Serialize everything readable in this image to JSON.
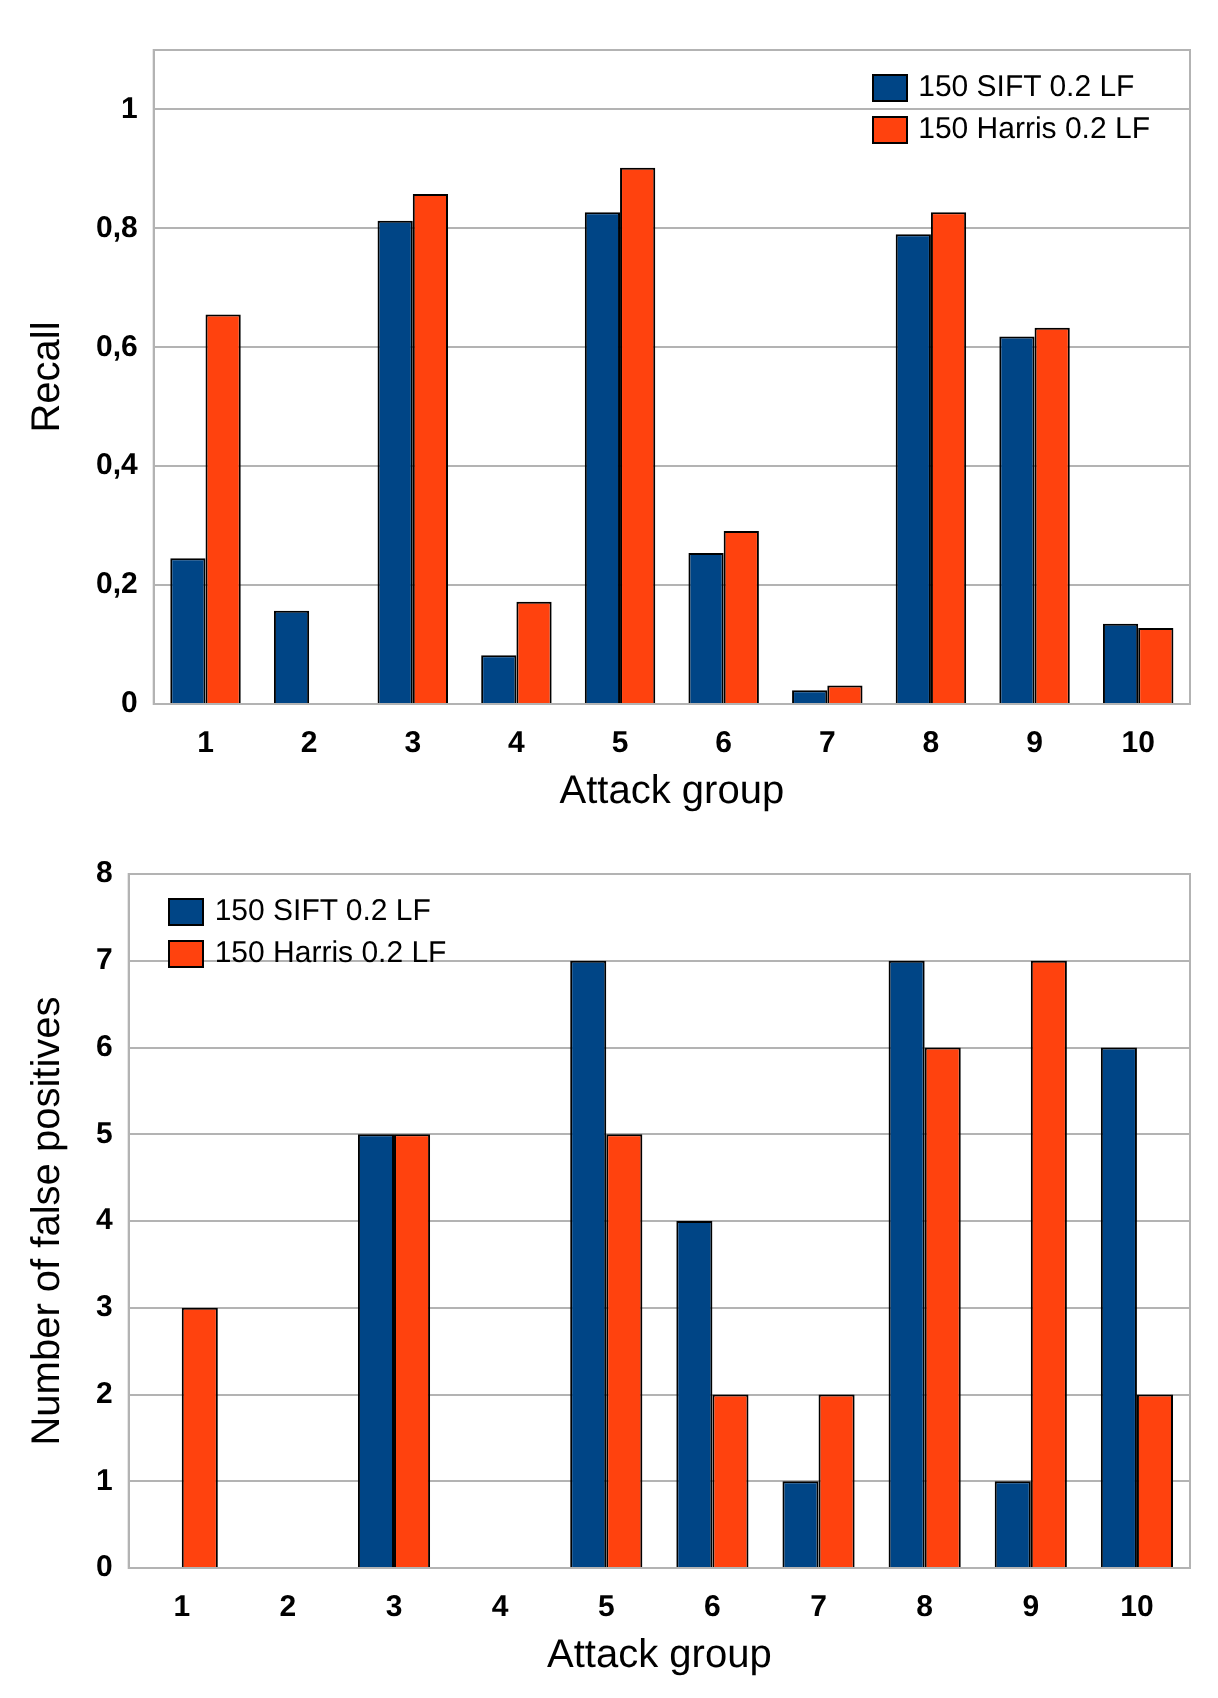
{
  "chart_data": [
    {
      "type": "bar",
      "xlabel": "Attack group",
      "ylabel": "Recall",
      "categories": [
        "1",
        "2",
        "3",
        "4",
        "5",
        "6",
        "7",
        "8",
        "9",
        "10"
      ],
      "series": [
        {
          "name": "150 SIFT 0.2 LF",
          "color": "#004586",
          "values": [
            0.245,
            0.157,
            0.813,
            0.082,
            0.827,
            0.254,
            0.023,
            0.79,
            0.618,
            0.135
          ]
        },
        {
          "name": "150 Harris 0.2 LF",
          "color": "#ff420e",
          "values": [
            0.655,
            0,
            0.858,
            0.172,
            0.902,
            0.291,
            0.031,
            0.827,
            0.633,
            0.128
          ]
        }
      ],
      "ylim": [
        0,
        1.1
      ],
      "yticks": [
        0,
        {
          "value": 0.2,
          "label": "0,2"
        },
        {
          "value": 0.4,
          "label": "0,4"
        },
        {
          "value": 0.6,
          "label": "0,6"
        },
        {
          "value": 0.8,
          "label": "0,8"
        },
        1
      ],
      "grid": "y",
      "legend": "top right"
    },
    {
      "type": "bar",
      "xlabel": "Attack group",
      "ylabel": "Number of false positives",
      "categories": [
        "1",
        "2",
        "3",
        "4",
        "5",
        "6",
        "7",
        "8",
        "9",
        "10"
      ],
      "series": [
        {
          "name": "150 SIFT 0.2 LF",
          "color": "#004586",
          "values": [
            0,
            0,
            5,
            0,
            7,
            4,
            1,
            7,
            1,
            6
          ]
        },
        {
          "name": "150 Harris 0.2 LF",
          "color": "#ff420e",
          "values": [
            3,
            0,
            5,
            0,
            5,
            2,
            2,
            6,
            7,
            2
          ]
        }
      ],
      "ylim": [
        0,
        8
      ],
      "yticks": [
        0,
        1,
        2,
        3,
        4,
        5,
        6,
        7,
        8
      ],
      "grid": "y",
      "legend": "top left"
    }
  ]
}
